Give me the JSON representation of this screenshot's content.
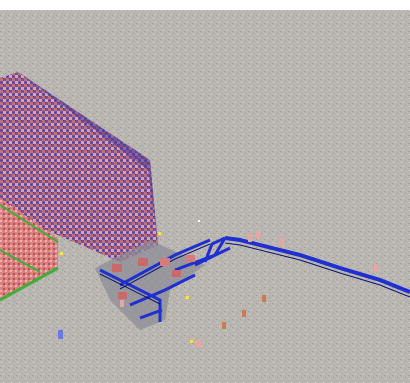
{
  "colors": {
    "ground": "#b9b6b2",
    "ground_speckle_light": "#d8d6d2",
    "ground_speckle_dark": "#9c9894",
    "top_strip": "#ffffff",
    "track_blue": "#1f2fd0",
    "track_edge": "#0b1370",
    "platform_gray": "#8c8c96",
    "building_red": "#c86a6a",
    "building_pink": "#e2a0a0",
    "building_purple": "#4a3a9a",
    "roof_green": "#3fae3a",
    "spark_yellow": "#ffe23a",
    "figure_blue": "#6b78e0",
    "figure_pink": "#e7a7a0",
    "figure_orange": "#cc7a50"
  },
  "scene": {
    "type": "isometric-pixel-strategy-map",
    "ground": "gravel",
    "left_complex": "city-blocks",
    "center": "track-junction",
    "right": "long-rail-line"
  },
  "icons": {
    "unit": "person-icon",
    "vehicle": "cart-icon",
    "marker": "spark-icon"
  }
}
